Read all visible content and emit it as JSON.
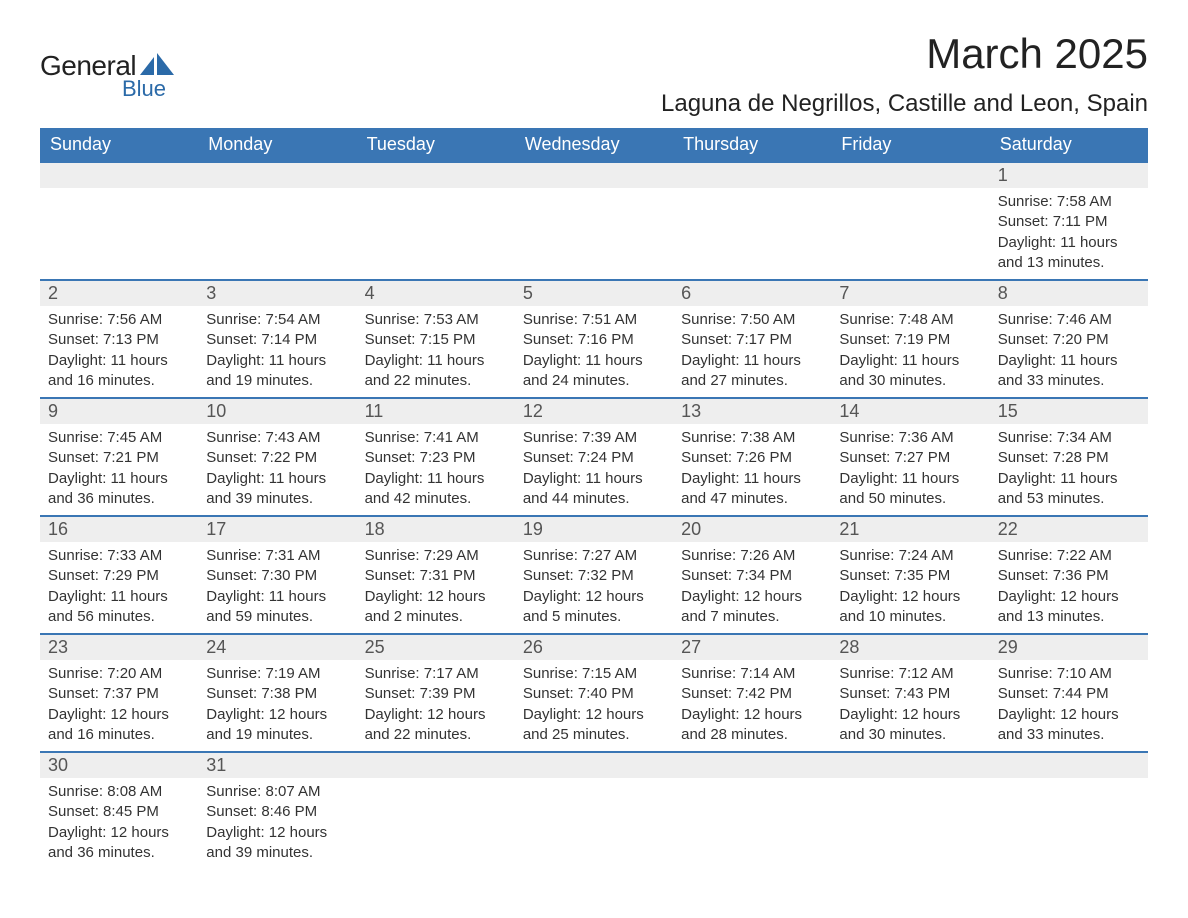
{
  "logo": {
    "text1": "General",
    "text2": "Blue",
    "shape_color": "#2b6aa8"
  },
  "title": "March 2025",
  "location": "Laguna de Negrillos, Castille and Leon, Spain",
  "colors": {
    "header_bg": "#3a76b4",
    "header_text": "#ffffff",
    "daynum_bg": "#eeeeee",
    "row_border": "#3a76b4",
    "text": "#333333"
  },
  "weekdays": [
    "Sunday",
    "Monday",
    "Tuesday",
    "Wednesday",
    "Thursday",
    "Friday",
    "Saturday"
  ],
  "weeks": [
    [
      null,
      null,
      null,
      null,
      null,
      null,
      {
        "n": "1",
        "sunrise": "Sunrise: 7:58 AM",
        "sunset": "Sunset: 7:11 PM",
        "daylight1": "Daylight: 11 hours",
        "daylight2": "and 13 minutes."
      }
    ],
    [
      {
        "n": "2",
        "sunrise": "Sunrise: 7:56 AM",
        "sunset": "Sunset: 7:13 PM",
        "daylight1": "Daylight: 11 hours",
        "daylight2": "and 16 minutes."
      },
      {
        "n": "3",
        "sunrise": "Sunrise: 7:54 AM",
        "sunset": "Sunset: 7:14 PM",
        "daylight1": "Daylight: 11 hours",
        "daylight2": "and 19 minutes."
      },
      {
        "n": "4",
        "sunrise": "Sunrise: 7:53 AM",
        "sunset": "Sunset: 7:15 PM",
        "daylight1": "Daylight: 11 hours",
        "daylight2": "and 22 minutes."
      },
      {
        "n": "5",
        "sunrise": "Sunrise: 7:51 AM",
        "sunset": "Sunset: 7:16 PM",
        "daylight1": "Daylight: 11 hours",
        "daylight2": "and 24 minutes."
      },
      {
        "n": "6",
        "sunrise": "Sunrise: 7:50 AM",
        "sunset": "Sunset: 7:17 PM",
        "daylight1": "Daylight: 11 hours",
        "daylight2": "and 27 minutes."
      },
      {
        "n": "7",
        "sunrise": "Sunrise: 7:48 AM",
        "sunset": "Sunset: 7:19 PM",
        "daylight1": "Daylight: 11 hours",
        "daylight2": "and 30 minutes."
      },
      {
        "n": "8",
        "sunrise": "Sunrise: 7:46 AM",
        "sunset": "Sunset: 7:20 PM",
        "daylight1": "Daylight: 11 hours",
        "daylight2": "and 33 minutes."
      }
    ],
    [
      {
        "n": "9",
        "sunrise": "Sunrise: 7:45 AM",
        "sunset": "Sunset: 7:21 PM",
        "daylight1": "Daylight: 11 hours",
        "daylight2": "and 36 minutes."
      },
      {
        "n": "10",
        "sunrise": "Sunrise: 7:43 AM",
        "sunset": "Sunset: 7:22 PM",
        "daylight1": "Daylight: 11 hours",
        "daylight2": "and 39 minutes."
      },
      {
        "n": "11",
        "sunrise": "Sunrise: 7:41 AM",
        "sunset": "Sunset: 7:23 PM",
        "daylight1": "Daylight: 11 hours",
        "daylight2": "and 42 minutes."
      },
      {
        "n": "12",
        "sunrise": "Sunrise: 7:39 AM",
        "sunset": "Sunset: 7:24 PM",
        "daylight1": "Daylight: 11 hours",
        "daylight2": "and 44 minutes."
      },
      {
        "n": "13",
        "sunrise": "Sunrise: 7:38 AM",
        "sunset": "Sunset: 7:26 PM",
        "daylight1": "Daylight: 11 hours",
        "daylight2": "and 47 minutes."
      },
      {
        "n": "14",
        "sunrise": "Sunrise: 7:36 AM",
        "sunset": "Sunset: 7:27 PM",
        "daylight1": "Daylight: 11 hours",
        "daylight2": "and 50 minutes."
      },
      {
        "n": "15",
        "sunrise": "Sunrise: 7:34 AM",
        "sunset": "Sunset: 7:28 PM",
        "daylight1": "Daylight: 11 hours",
        "daylight2": "and 53 minutes."
      }
    ],
    [
      {
        "n": "16",
        "sunrise": "Sunrise: 7:33 AM",
        "sunset": "Sunset: 7:29 PM",
        "daylight1": "Daylight: 11 hours",
        "daylight2": "and 56 minutes."
      },
      {
        "n": "17",
        "sunrise": "Sunrise: 7:31 AM",
        "sunset": "Sunset: 7:30 PM",
        "daylight1": "Daylight: 11 hours",
        "daylight2": "and 59 minutes."
      },
      {
        "n": "18",
        "sunrise": "Sunrise: 7:29 AM",
        "sunset": "Sunset: 7:31 PM",
        "daylight1": "Daylight: 12 hours",
        "daylight2": "and 2 minutes."
      },
      {
        "n": "19",
        "sunrise": "Sunrise: 7:27 AM",
        "sunset": "Sunset: 7:32 PM",
        "daylight1": "Daylight: 12 hours",
        "daylight2": "and 5 minutes."
      },
      {
        "n": "20",
        "sunrise": "Sunrise: 7:26 AM",
        "sunset": "Sunset: 7:34 PM",
        "daylight1": "Daylight: 12 hours",
        "daylight2": "and 7 minutes."
      },
      {
        "n": "21",
        "sunrise": "Sunrise: 7:24 AM",
        "sunset": "Sunset: 7:35 PM",
        "daylight1": "Daylight: 12 hours",
        "daylight2": "and 10 minutes."
      },
      {
        "n": "22",
        "sunrise": "Sunrise: 7:22 AM",
        "sunset": "Sunset: 7:36 PM",
        "daylight1": "Daylight: 12 hours",
        "daylight2": "and 13 minutes."
      }
    ],
    [
      {
        "n": "23",
        "sunrise": "Sunrise: 7:20 AM",
        "sunset": "Sunset: 7:37 PM",
        "daylight1": "Daylight: 12 hours",
        "daylight2": "and 16 minutes."
      },
      {
        "n": "24",
        "sunrise": "Sunrise: 7:19 AM",
        "sunset": "Sunset: 7:38 PM",
        "daylight1": "Daylight: 12 hours",
        "daylight2": "and 19 minutes."
      },
      {
        "n": "25",
        "sunrise": "Sunrise: 7:17 AM",
        "sunset": "Sunset: 7:39 PM",
        "daylight1": "Daylight: 12 hours",
        "daylight2": "and 22 minutes."
      },
      {
        "n": "26",
        "sunrise": "Sunrise: 7:15 AM",
        "sunset": "Sunset: 7:40 PM",
        "daylight1": "Daylight: 12 hours",
        "daylight2": "and 25 minutes."
      },
      {
        "n": "27",
        "sunrise": "Sunrise: 7:14 AM",
        "sunset": "Sunset: 7:42 PM",
        "daylight1": "Daylight: 12 hours",
        "daylight2": "and 28 minutes."
      },
      {
        "n": "28",
        "sunrise": "Sunrise: 7:12 AM",
        "sunset": "Sunset: 7:43 PM",
        "daylight1": "Daylight: 12 hours",
        "daylight2": "and 30 minutes."
      },
      {
        "n": "29",
        "sunrise": "Sunrise: 7:10 AM",
        "sunset": "Sunset: 7:44 PM",
        "daylight1": "Daylight: 12 hours",
        "daylight2": "and 33 minutes."
      }
    ],
    [
      {
        "n": "30",
        "sunrise": "Sunrise: 8:08 AM",
        "sunset": "Sunset: 8:45 PM",
        "daylight1": "Daylight: 12 hours",
        "daylight2": "and 36 minutes."
      },
      {
        "n": "31",
        "sunrise": "Sunrise: 8:07 AM",
        "sunset": "Sunset: 8:46 PM",
        "daylight1": "Daylight: 12 hours",
        "daylight2": "and 39 minutes."
      },
      null,
      null,
      null,
      null,
      null
    ]
  ]
}
